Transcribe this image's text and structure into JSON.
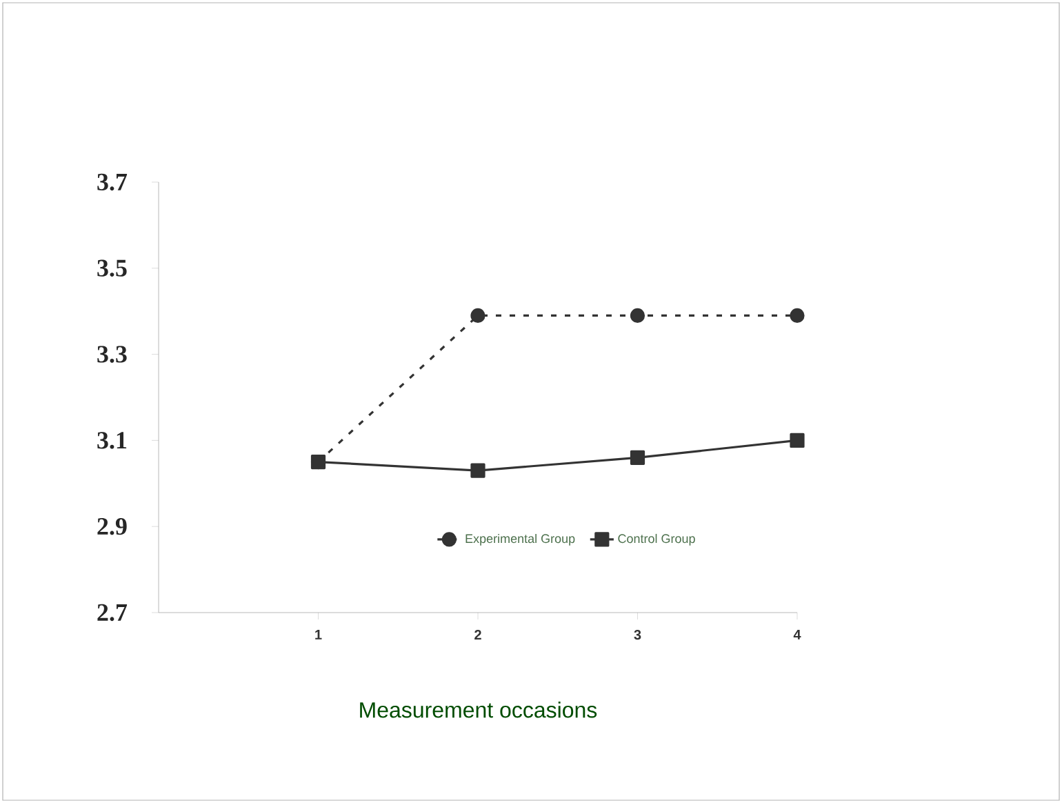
{
  "chart_data": {
    "type": "line",
    "xlabel": "Measurement occasions",
    "x": [
      1,
      2,
      3,
      4
    ],
    "xlim": [
      0,
      4
    ],
    "xticks": [
      1,
      2,
      3,
      4
    ],
    "ylim": [
      2.7,
      3.7
    ],
    "yticks": [
      2.7,
      2.9,
      3.1,
      3.3,
      3.5,
      3.7
    ],
    "series": [
      {
        "name": "Experimental Group",
        "color": "#333333",
        "values": [
          3.05,
          3.39,
          3.39,
          3.39
        ],
        "marker": "circle",
        "line_style": "dashed"
      },
      {
        "name": "Control Group",
        "color": "#333333",
        "values": [
          3.05,
          3.03,
          3.06,
          3.1
        ],
        "marker": "square",
        "line_style": "solid"
      }
    ],
    "grid": false,
    "legend": "bottom"
  }
}
